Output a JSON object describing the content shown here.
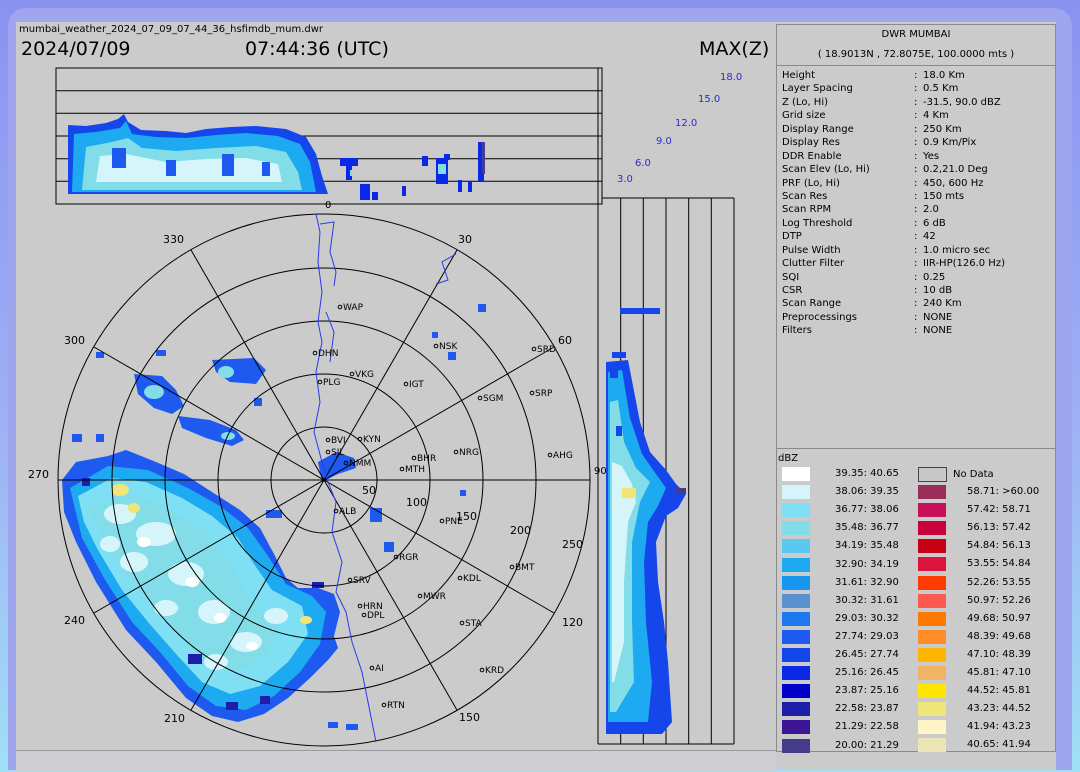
{
  "header": {
    "filename": "mumbai_weather_2024_07_09_07_44_36_hsfimdb_mum.dwr",
    "date": "2024/07/09",
    "time": "07:44:36 (UTC)",
    "product": "MAX(Z)"
  },
  "station": {
    "name": "DWR MUMBAI",
    "coords": "( 18.9013N , 72.8075E, 100.0000 mts )"
  },
  "params": [
    {
      "label": "Height",
      "value": "18.0 Km"
    },
    {
      "label": "Layer Spacing",
      "value": "0.5 Km"
    },
    {
      "label": "Z (Lo, Hi)",
      "value": "-31.5, 90.0 dBZ"
    },
    {
      "label": "Grid size",
      "value": "4 Km"
    },
    {
      "label": "Display Range",
      "value": "250 Km"
    },
    {
      "label": "Display Res",
      "value": "0.9 Km/Pix"
    },
    {
      "label": "DDR Enable",
      "value": "Yes"
    },
    {
      "label": "Scan Elev (Lo, Hi)",
      "value": "0.2,21.0 Deg"
    },
    {
      "label": "PRF (Lo, Hi)",
      "value": "450, 600 Hz"
    },
    {
      "label": "Scan Res",
      "value": "150 mts"
    },
    {
      "label": "Scan RPM",
      "value": "2.0"
    },
    {
      "label": "Log Threshold",
      "value": "6 dB"
    },
    {
      "label": "DTP",
      "value": "42"
    },
    {
      "label": "Pulse Width",
      "value": "1.0 micro sec"
    },
    {
      "label": "Clutter Filter",
      "value": "IIR-HP(126.0 Hz)"
    },
    {
      "label": "SQI",
      "value": "0.25"
    },
    {
      "label": "CSR",
      "value": "10 dB"
    },
    {
      "label": "Scan Range",
      "value": "240 Km"
    },
    {
      "label": "Preprocessings",
      "value": "NONE"
    },
    {
      "label": "Filters",
      "value": "NONE"
    }
  ],
  "legend": {
    "unit": "dBZ",
    "no_data": "No Data",
    "left": [
      {
        "label": "39.35: 40.65",
        "color": "#ffffff"
      },
      {
        "label": "38.06: 39.35",
        "color": "#d6f5fb"
      },
      {
        "label": "36.77: 38.06",
        "color": "#7ee0f2"
      },
      {
        "label": "35.48: 36.77",
        "color": "#82dde8"
      },
      {
        "label": "34.19: 35.48",
        "color": "#5bc8f0"
      },
      {
        "label": "32.90: 34.19",
        "color": "#1eaaf0"
      },
      {
        "label": "31.61: 32.90",
        "color": "#1996f0"
      },
      {
        "label": "30.32: 31.61",
        "color": "#5a8fd2"
      },
      {
        "label": "29.03: 30.32",
        "color": "#1e78f0"
      },
      {
        "label": "27.74: 29.03",
        "color": "#1e5af0"
      },
      {
        "label": "26.45: 27.74",
        "color": "#1446eb"
      },
      {
        "label": "25.16: 26.45",
        "color": "#0a28e6"
      },
      {
        "label": "23.87: 25.16",
        "color": "#0000c8"
      },
      {
        "label": "22.58: 23.87",
        "color": "#1e1eaa"
      },
      {
        "label": "21.29: 22.58",
        "color": "#3c1496"
      },
      {
        "label": "20.00: 21.29",
        "color": "#463c8c"
      }
    ],
    "right": [
      {
        "label": "58.71: >60.00",
        "color": "#9b2d5a"
      },
      {
        "label": "57.42: 58.71",
        "color": "#c80f5a"
      },
      {
        "label": "56.13: 57.42",
        "color": "#c8003c"
      },
      {
        "label": "54.84: 56.13",
        "color": "#c80014"
      },
      {
        "label": "53.55: 54.84",
        "color": "#dc143c"
      },
      {
        "label": "52.26: 53.55",
        "color": "#ff3c00"
      },
      {
        "label": "50.97: 52.26",
        "color": "#ff5a50"
      },
      {
        "label": "49.68: 50.97",
        "color": "#ff7800"
      },
      {
        "label": "48.39: 49.68",
        "color": "#ff8c28"
      },
      {
        "label": "47.10: 48.39",
        "color": "#ffb400"
      },
      {
        "label": "45.81: 47.10",
        "color": "#f0b464"
      },
      {
        "label": "44.52: 45.81",
        "color": "#ffe600"
      },
      {
        "label": "43.23: 44.52",
        "color": "#f0e678"
      },
      {
        "label": "41.94: 43.23",
        "color": "#fff5c8"
      },
      {
        "label": "40.65: 41.94",
        "color": "#ece6b4"
      }
    ]
  },
  "top_heights": [
    "18.0",
    "15.0",
    "12.0",
    "9.0",
    "6.0",
    "3.0"
  ],
  "top_zero": "0",
  "azimuths": {
    "a0": "30",
    "a1": "60",
    "a2": "120",
    "a3": "150",
    "a4": "210",
    "a5": "240",
    "a6": "270",
    "a7": "300",
    "a8": "330",
    "a9": "90"
  },
  "ranges": {
    "r0": "50",
    "r1": "100",
    "r2": "150",
    "r3": "200",
    "r4": "250"
  },
  "places": [
    "WAP",
    "DHN",
    "NSK",
    "SRD",
    "VKG",
    "PLG",
    "IGT",
    "SGM",
    "SRP",
    "BVI",
    "KYN",
    "SJL",
    "NMM",
    "MTH",
    "BHR",
    "NRG",
    "AHG",
    "ALB",
    "PNE",
    "RGR",
    "BMT",
    "SRV",
    "KDL",
    "MWR",
    "HRN",
    "DPL",
    "STA",
    "AI",
    "KRD",
    "RTN"
  ]
}
